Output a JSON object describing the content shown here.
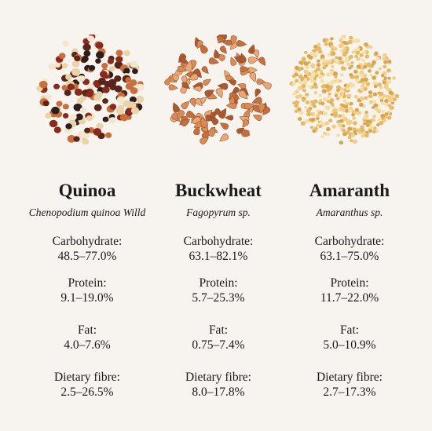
{
  "grains": [
    {
      "name": "Quinoa",
      "latin": "Chenopodium quinoa Willd",
      "illustration": "quinoa-seed-cluster",
      "colors": [
        "#f3e6cc",
        "#e9d3a8",
        "#8a2a1c",
        "#5a2418",
        "#2e1d1a",
        "#c96e3d"
      ],
      "nutrients": [
        {
          "label": "Carbohydrate:",
          "value": "48.5–77.0%"
        },
        {
          "label": "Protein:",
          "value": "9.1–19.0%"
        },
        {
          "label": "Fat:",
          "value": "4.0–7.6%"
        },
        {
          "label": "Dietary fibre:",
          "value": "2.5–26.5%"
        }
      ]
    },
    {
      "name": "Buckwheat",
      "latin": "Fagopyrum sp.",
      "illustration": "buckwheat-groat-cluster",
      "colors": [
        "#d98a55",
        "#c46f3e",
        "#e8a877",
        "#a85a30"
      ],
      "nutrients": [
        {
          "label": "Carbohydrate:",
          "value": "63.1–82.1%"
        },
        {
          "label": "Protein:",
          "value": "5.7–25.3%"
        },
        {
          "label": "Fat:",
          "value": "0.75–7.4%"
        },
        {
          "label": "Dietary fibre:",
          "value": "8.0–17.8%"
        }
      ]
    },
    {
      "name": "Amaranth",
      "latin": "Amaranthus sp.",
      "illustration": "amaranth-seed-cluster",
      "colors": [
        "#f1cf86",
        "#e6b965",
        "#f7dea5",
        "#d9a54f"
      ],
      "nutrients": [
        {
          "label": "Carbohydrate:",
          "value": "63.1–75.0%"
        },
        {
          "label": "Protein:",
          "value": "11.7–22.0%"
        },
        {
          "label": "Fat:",
          "value": "5.0–10.9%"
        },
        {
          "label": "Dietary fibre:",
          "value": "2.7–17.3%"
        }
      ]
    }
  ]
}
